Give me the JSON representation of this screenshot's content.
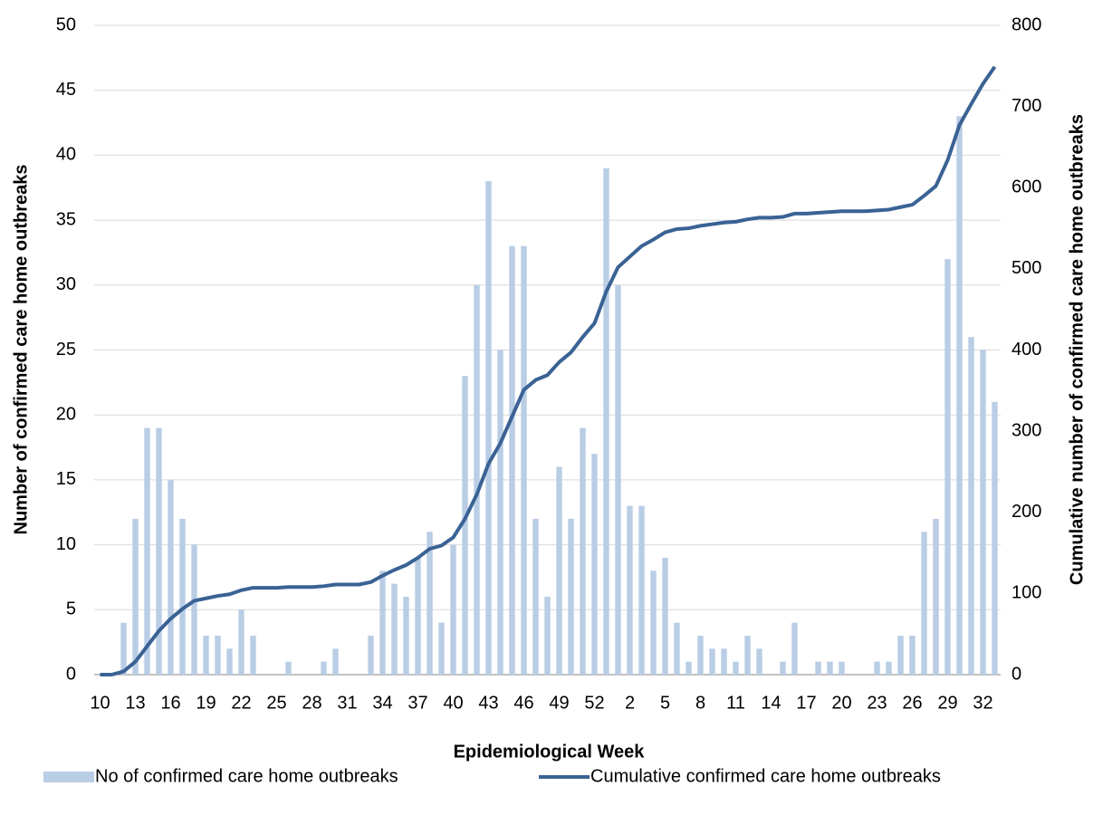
{
  "chart_data": {
    "type": "bar_line",
    "x_label": "Epidemiological Week",
    "y_label": "Number of confirmed care home outbreaks",
    "y2_label": "Cumulative number of confirmed care home outbreaks",
    "categories": [
      "10",
      null,
      null,
      "13",
      null,
      null,
      "16",
      null,
      null,
      "19",
      null,
      null,
      "22",
      null,
      null,
      "25",
      null,
      null,
      "28",
      null,
      null,
      "31",
      null,
      null,
      "34",
      null,
      null,
      "37",
      null,
      null,
      "40",
      null,
      null,
      "43",
      null,
      null,
      "46",
      null,
      null,
      "49",
      null,
      null,
      "52",
      null,
      null,
      "2",
      null,
      null,
      "5",
      null,
      null,
      "8",
      null,
      null,
      "11",
      null,
      null,
      "14",
      null,
      null,
      "17",
      null,
      null,
      "20",
      null,
      null,
      "23",
      null,
      null,
      "26",
      null,
      null,
      "29",
      null,
      null,
      "32",
      null
    ],
    "series": [
      {
        "name": "No of confirmed care home outbreaks",
        "type": "bar",
        "color": "#b9cde5",
        "values": [
          0,
          0,
          4,
          12,
          19,
          19,
          15,
          12,
          10,
          3,
          3,
          2,
          5,
          3,
          0,
          0,
          1,
          0,
          0,
          1,
          2,
          0,
          0,
          3,
          8,
          7,
          6,
          9,
          11,
          4,
          10,
          23,
          30,
          38,
          25,
          33,
          33,
          12,
          6,
          16,
          12,
          19,
          17,
          39,
          30,
          13,
          13,
          8,
          9,
          4,
          1,
          3,
          2,
          2,
          1,
          3,
          2,
          0,
          1,
          4,
          0,
          1,
          1,
          1,
          0,
          0,
          1,
          1,
          3,
          3,
          11,
          12,
          32,
          43,
          26,
          25,
          21
        ]
      },
      {
        "name": "Cumulative confirmed care home outbreaks",
        "type": "line",
        "axis": "y2",
        "color": "#3a6294",
        "values": [
          0,
          0,
          4,
          16,
          35,
          54,
          69,
          81,
          91,
          94,
          97,
          99,
          104,
          107,
          107,
          107,
          108,
          108,
          108,
          109,
          111,
          111,
          111,
          114,
          122,
          129,
          135,
          144,
          155,
          159,
          169,
          192,
          222,
          260,
          285,
          318,
          351,
          363,
          369,
          385,
          397,
          416,
          433,
          472,
          502,
          515,
          528,
          536,
          545,
          549,
          550,
          553,
          555,
          557,
          558,
          561,
          563,
          563,
          564,
          568,
          568,
          569,
          570,
          571,
          571,
          571,
          572,
          573,
          576,
          579,
          590,
          602,
          634,
          677,
          703,
          728,
          749
        ]
      }
    ],
    "ylim": [
      0,
      50
    ],
    "yticks": [
      0,
      5,
      10,
      15,
      20,
      25,
      30,
      35,
      40,
      45,
      50
    ],
    "y2lim": [
      0,
      800
    ],
    "y2ticks": [
      0,
      100,
      200,
      300,
      400,
      500,
      600,
      700,
      800
    ],
    "grid": true,
    "legend": "bottom"
  }
}
